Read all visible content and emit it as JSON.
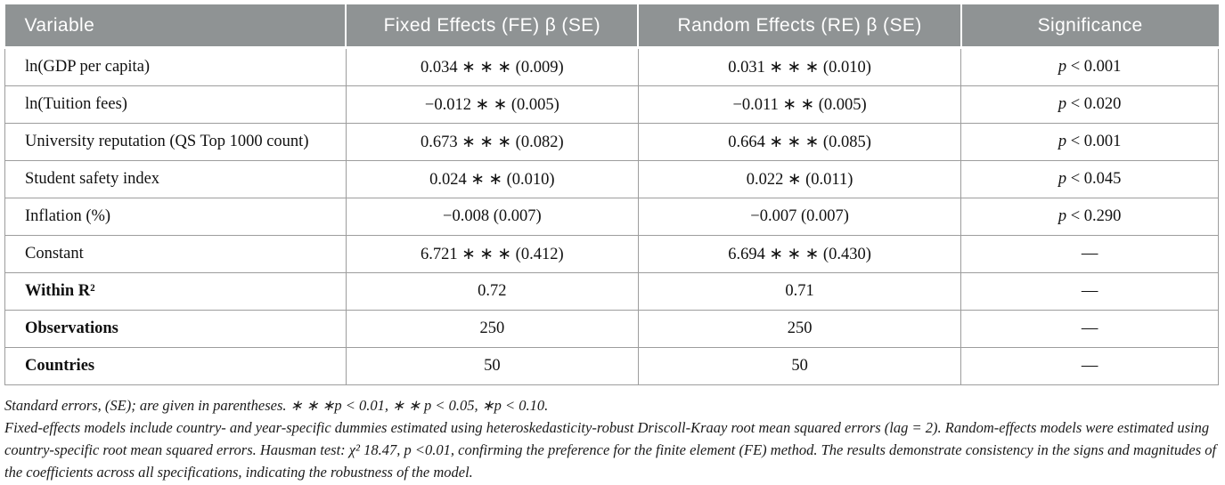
{
  "table": {
    "headers": {
      "variable": "Variable",
      "fixed_effects": "Fixed Effects (FE) β (SE)",
      "random_effects": "Random Effects (RE) β (SE)",
      "significance": "Significance"
    },
    "rows": [
      {
        "variable": "ln(GDP per capita)",
        "fe": "0.034 ∗ ∗ ∗ (0.009)",
        "re": "0.031 ∗ ∗ ∗ (0.010)",
        "sig_p": "p",
        "sig_rest": " < 0.001"
      },
      {
        "variable": "ln(Tuition fees)",
        "fe": "−0.012 ∗ ∗ (0.005)",
        "re": "−0.011 ∗ ∗ (0.005)",
        "sig_p": "p",
        "sig_rest": " < 0.020"
      },
      {
        "variable": "University reputation (QS Top 1000 count)",
        "fe": "0.673 ∗ ∗ ∗ (0.082)",
        "re": "0.664 ∗ ∗ ∗ (0.085)",
        "sig_p": "p",
        "sig_rest": " < 0.001"
      },
      {
        "variable": "Student safety index",
        "fe": "0.024 ∗ ∗ (0.010)",
        "re": "0.022 ∗ (0.011)",
        "sig_p": "p",
        "sig_rest": " < 0.045"
      },
      {
        "variable": "Inflation (%)",
        "fe": "−0.008 (0.007)",
        "re": "−0.007 (0.007)",
        "sig_p": "p",
        "sig_rest": " < 0.290"
      },
      {
        "variable": "Constant",
        "fe": "6.721 ∗ ∗ ∗ (0.412)",
        "re": "6.694 ∗ ∗ ∗ (0.430)",
        "sig_p": "",
        "sig_rest": "—"
      },
      {
        "variable": "Within R²",
        "fe": "0.72",
        "re": "0.71",
        "sig_p": "",
        "sig_rest": "—"
      },
      {
        "variable": "Observations",
        "fe": "250",
        "re": "250",
        "sig_p": "",
        "sig_rest": "—"
      },
      {
        "variable": "Countries",
        "fe": "50",
        "re": "50",
        "sig_p": "",
        "sig_rest": "—"
      }
    ]
  },
  "footnotes": {
    "line1": "Standard errors, (SE); are given in parentheses. ∗ ∗ ∗p < 0.01, ∗ ∗ p < 0.05, ∗p < 0.10.",
    "line2": "Fixed-effects models include country- and year-specific dummies estimated using heteroskedasticity-robust Driscoll-Kraay root mean squared errors (lag = 2). Random-effects models were estimated using country-specific root mean squared errors. Hausman test: χ² 18.47, p <0.01, confirming the preference for the finite element (FE) method. The results demonstrate consistency in the signs and magnitudes of the coefficients across all specifications, indicating the robustness of the model."
  },
  "colors": {
    "header_bg": "#8f9394",
    "header_text": "#ffffff",
    "body_border": "#9d9d9d"
  }
}
